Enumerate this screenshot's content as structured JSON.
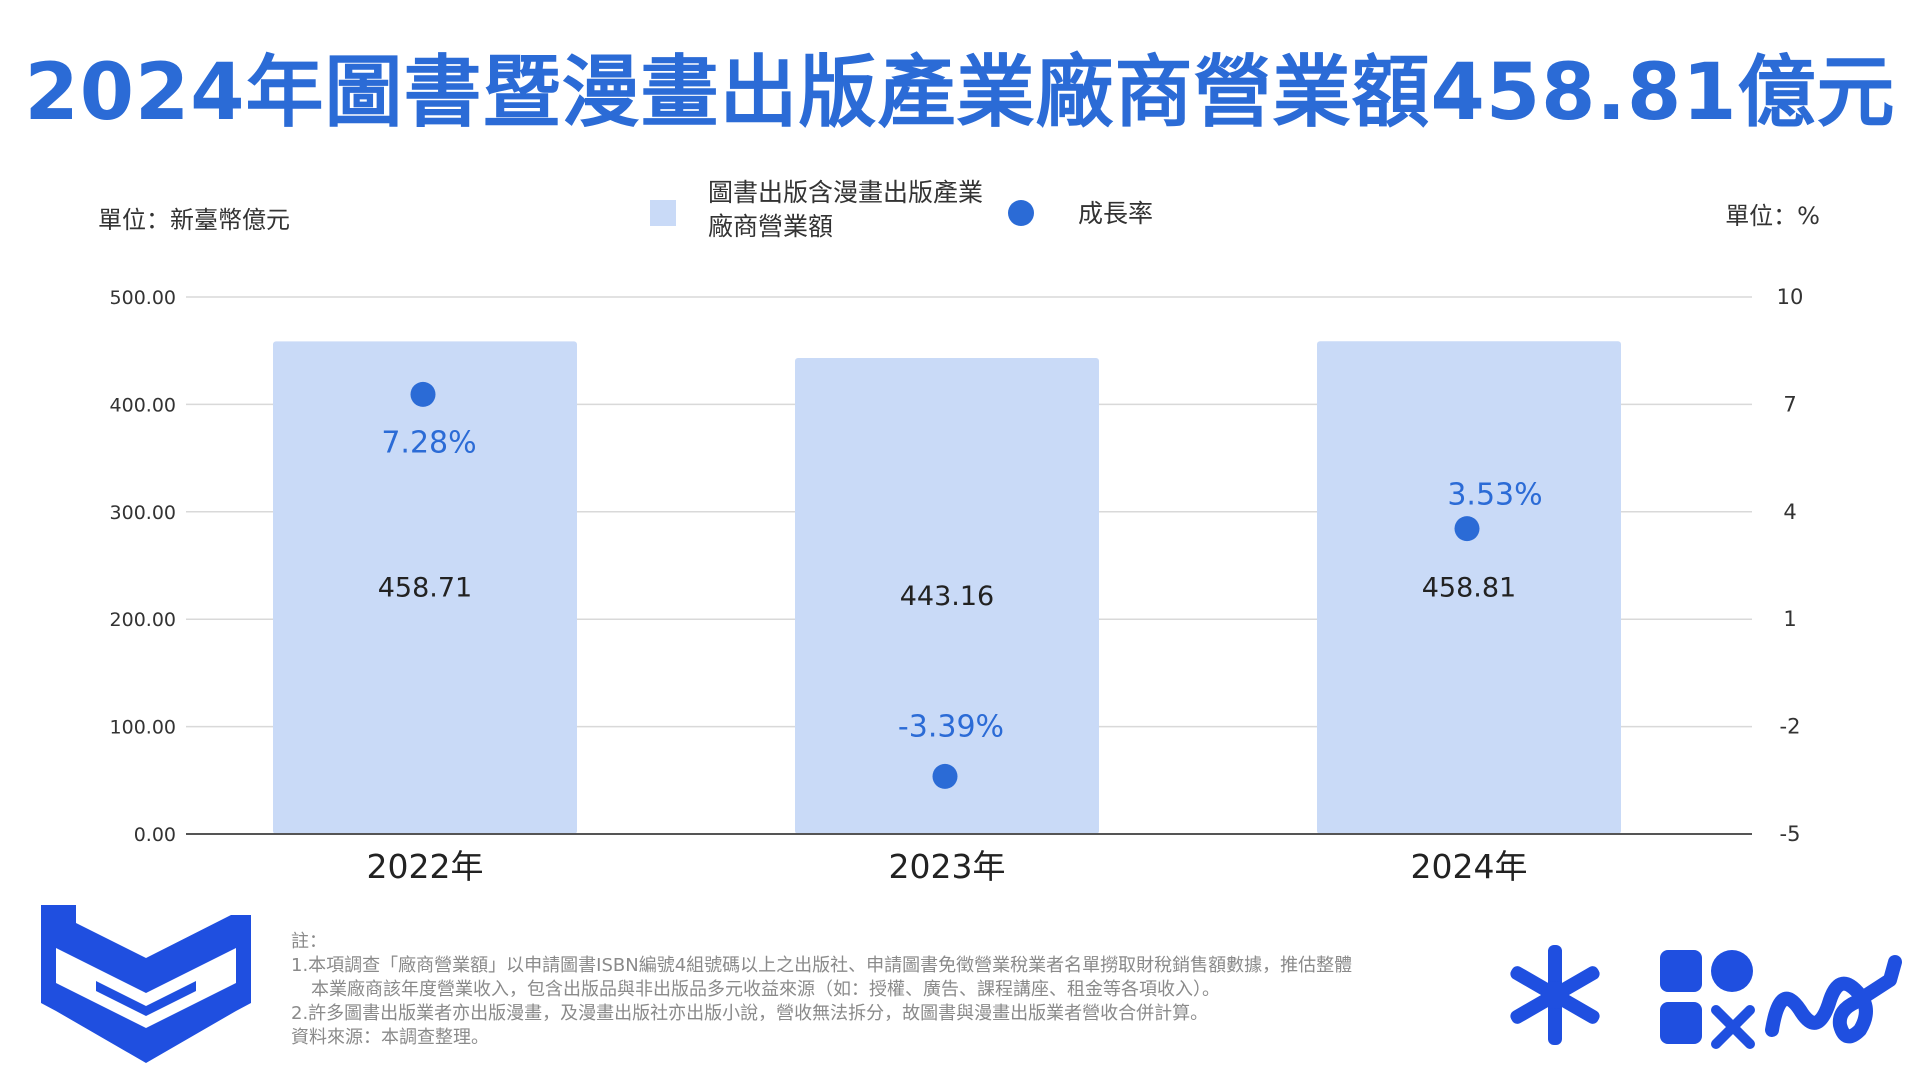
{
  "title": "2024年圖書暨漫畫出版產業廠商營業額458.81億元",
  "unit_left": "單位：新臺幣億元",
  "unit_right": "單位：%",
  "legend": {
    "bar_label": "圖書出版含漫畫出版產業廠商營業額",
    "dot_label": "成長率"
  },
  "colors": {
    "bar": "#c9daf7",
    "dot": "#2b6bd6",
    "title": "#2b6bd6",
    "grid": "#d9d9d9",
    "axis": "#555555"
  },
  "chart_data": {
    "type": "bar",
    "categories": [
      "2022年",
      "2023年",
      "2024年"
    ],
    "series": [
      {
        "name": "圖書出版含漫畫出版產業廠商營業額",
        "type": "bar",
        "axis": "left",
        "values": [
          458.71,
          443.16,
          458.81
        ],
        "labels": [
          "458.71",
          "443.16",
          "458.81"
        ]
      },
      {
        "name": "成長率",
        "type": "scatter",
        "axis": "right",
        "values": [
          7.28,
          -3.39,
          3.53
        ],
        "labels": [
          "7.28%",
          "-3.39%",
          "3.53%"
        ]
      }
    ],
    "y_left": {
      "range": [
        0,
        500
      ],
      "ticks": [
        "0.00",
        "100.00",
        "200.00",
        "300.00",
        "400.00",
        "500.00"
      ],
      "tick_values": [
        0,
        100,
        200,
        300,
        400,
        500
      ]
    },
    "y_right": {
      "range": [
        -5,
        10
      ],
      "ticks": [
        "-5",
        "-2",
        "1",
        "4",
        "7",
        "10"
      ],
      "tick_values": [
        -5,
        -2,
        1,
        4,
        7,
        10
      ]
    },
    "grid": true,
    "legend_position": "top"
  },
  "notes": [
    "註：",
    "1.本項調查「廠商營業額」以申請圖書ISBN編號4組號碼以上之出版社、申請圖書免徵營業稅業者名單撈取財稅銷售額數據，推估整體",
    "本業廠商該年度營業收入，包含出版品與非出版品多元收益來源（如：授權、廣告、課程講座、租金等各項收入）。",
    "2.許多圖書出版業者亦出版漫畫，及漫畫出版社亦出版小說，營收無法拆分，故圖書與漫畫出版業者營收合併計算。",
    "資料來源：本調查整理。"
  ]
}
